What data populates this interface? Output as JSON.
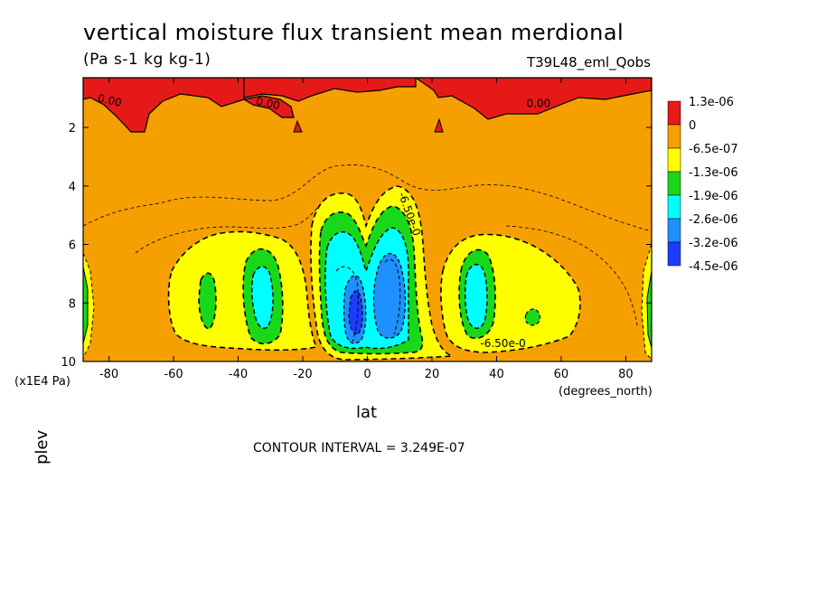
{
  "chart_data": {
    "type": "heatmap",
    "title": "vertical moisture flux transient mean merdional",
    "units": "(Pa s-1 kg kg-1)",
    "run_label": "T39L48_eml_Qobs",
    "xlabel": "lat",
    "x_units": "(degrees_north)",
    "ylabel": "plev",
    "y_units": "(x1E4 Pa)",
    "xlim": [
      -88,
      88
    ],
    "ylim": [
      0.3,
      10
    ],
    "y_inverted": true,
    "x_ticks": [
      "-80",
      "-60",
      "-40",
      "-20",
      "0",
      "20",
      "40",
      "60",
      "80"
    ],
    "x_tick_values": [
      -80,
      -60,
      -40,
      -20,
      0,
      20,
      40,
      60,
      80
    ],
    "y_ticks": [
      "2",
      "4",
      "6",
      "8",
      "10"
    ],
    "y_tick_values": [
      2,
      4,
      6,
      8,
      10
    ],
    "colorbar": {
      "labels": [
        "1.3e-06",
        "0",
        "-6.5e-07",
        "-1.3e-06",
        "-1.9e-06",
        "-2.6e-06",
        "-3.2e-06",
        "-4.5e-06"
      ],
      "colors": [
        "#e61919",
        "#f5a000",
        "#f5a000",
        "#ffff00",
        "#19d819",
        "#00ffff",
        "#1e90ff",
        "#1e3cff"
      ]
    },
    "contour_labels": [
      {
        "text": "0.00",
        "lat": -80,
        "plev": 1.2
      },
      {
        "text": "0.00",
        "lat": -31,
        "plev": 1.3
      },
      {
        "text": "0.00",
        "lat": 53,
        "plev": 1.3
      },
      {
        "text": "-6.50e-0",
        "lat": 12,
        "plev": 5.0
      },
      {
        "text": "-6.50e-0",
        "lat": 42,
        "plev": 9.5
      }
    ],
    "features": [
      {
        "lat": -50,
        "plev": 7.5,
        "min": -1.9e-06
      },
      {
        "lat": -33,
        "plev": 7.8,
        "min": -2.6e-06
      },
      {
        "lat": -3,
        "plev": 8.3,
        "min": -4.5e-06
      },
      {
        "lat": 10,
        "plev": 7.6,
        "min": -3.2e-06
      },
      {
        "lat": 32,
        "plev": 7.8,
        "min": -2.6e-06
      },
      {
        "lat": 50,
        "plev": 8.4,
        "min": -1.9e-06
      }
    ],
    "grid": false,
    "legend_position": "right"
  },
  "footer": {
    "contour_interval": "CONTOUR INTERVAL = 3.249E-07"
  }
}
